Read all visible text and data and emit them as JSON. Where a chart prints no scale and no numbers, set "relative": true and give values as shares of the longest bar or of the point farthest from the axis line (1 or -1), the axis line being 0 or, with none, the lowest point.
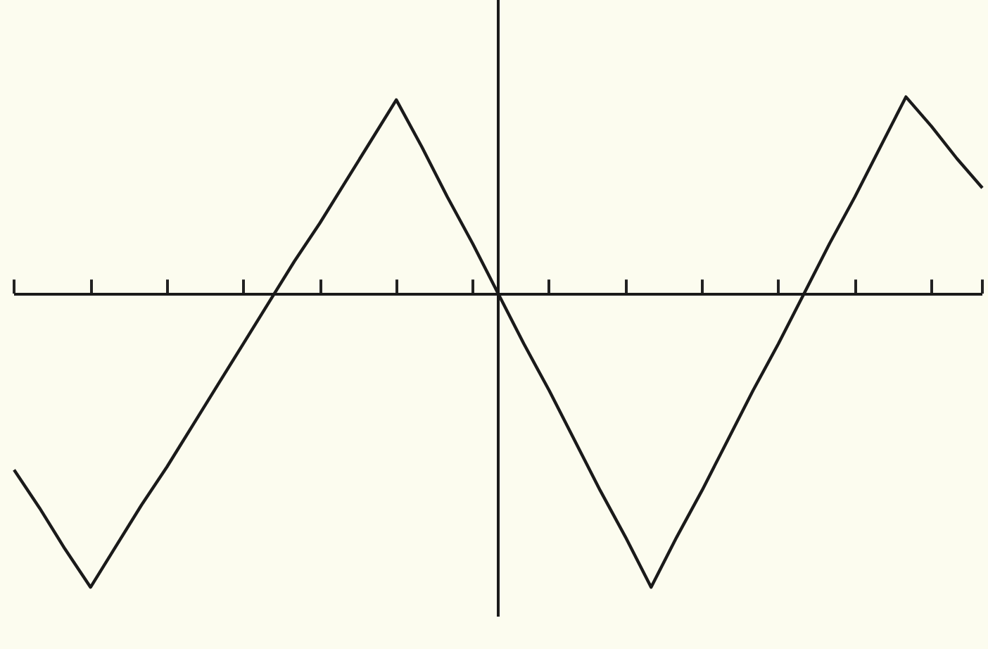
{
  "chart_data": {
    "type": "line",
    "relative": true,
    "categories": [
      null,
      null,
      null,
      null,
      null,
      null,
      null,
      null,
      null,
      null,
      null,
      null,
      null,
      null,
      null,
      null,
      null,
      null,
      null,
      null,
      null,
      null,
      null,
      null,
      null,
      null,
      null,
      null,
      null,
      null,
      null,
      null,
      null,
      null,
      null,
      null,
      null,
      null,
      null
    ],
    "series": [
      {
        "color": "#1a1a1a",
        "values": [
          -0.6,
          -0.73,
          -0.87,
          -1,
          -0.86,
          -0.72,
          -0.59,
          -0.45,
          -0.31,
          -0.17,
          -0.03,
          0.11,
          0.24,
          0.38,
          0.52,
          0.66,
          0.5,
          0.33,
          0.17,
          0,
          -0.17,
          -0.33,
          -0.5,
          -0.67,
          -0.83,
          -1,
          -0.83,
          -0.67,
          -0.5,
          -0.33,
          -0.17,
          0,
          0.17,
          0.33,
          0.5,
          0.67,
          0.57,
          0.46,
          0.36
        ]
      }
    ],
    "marker": "none",
    "line_style": "solid"
  }
}
